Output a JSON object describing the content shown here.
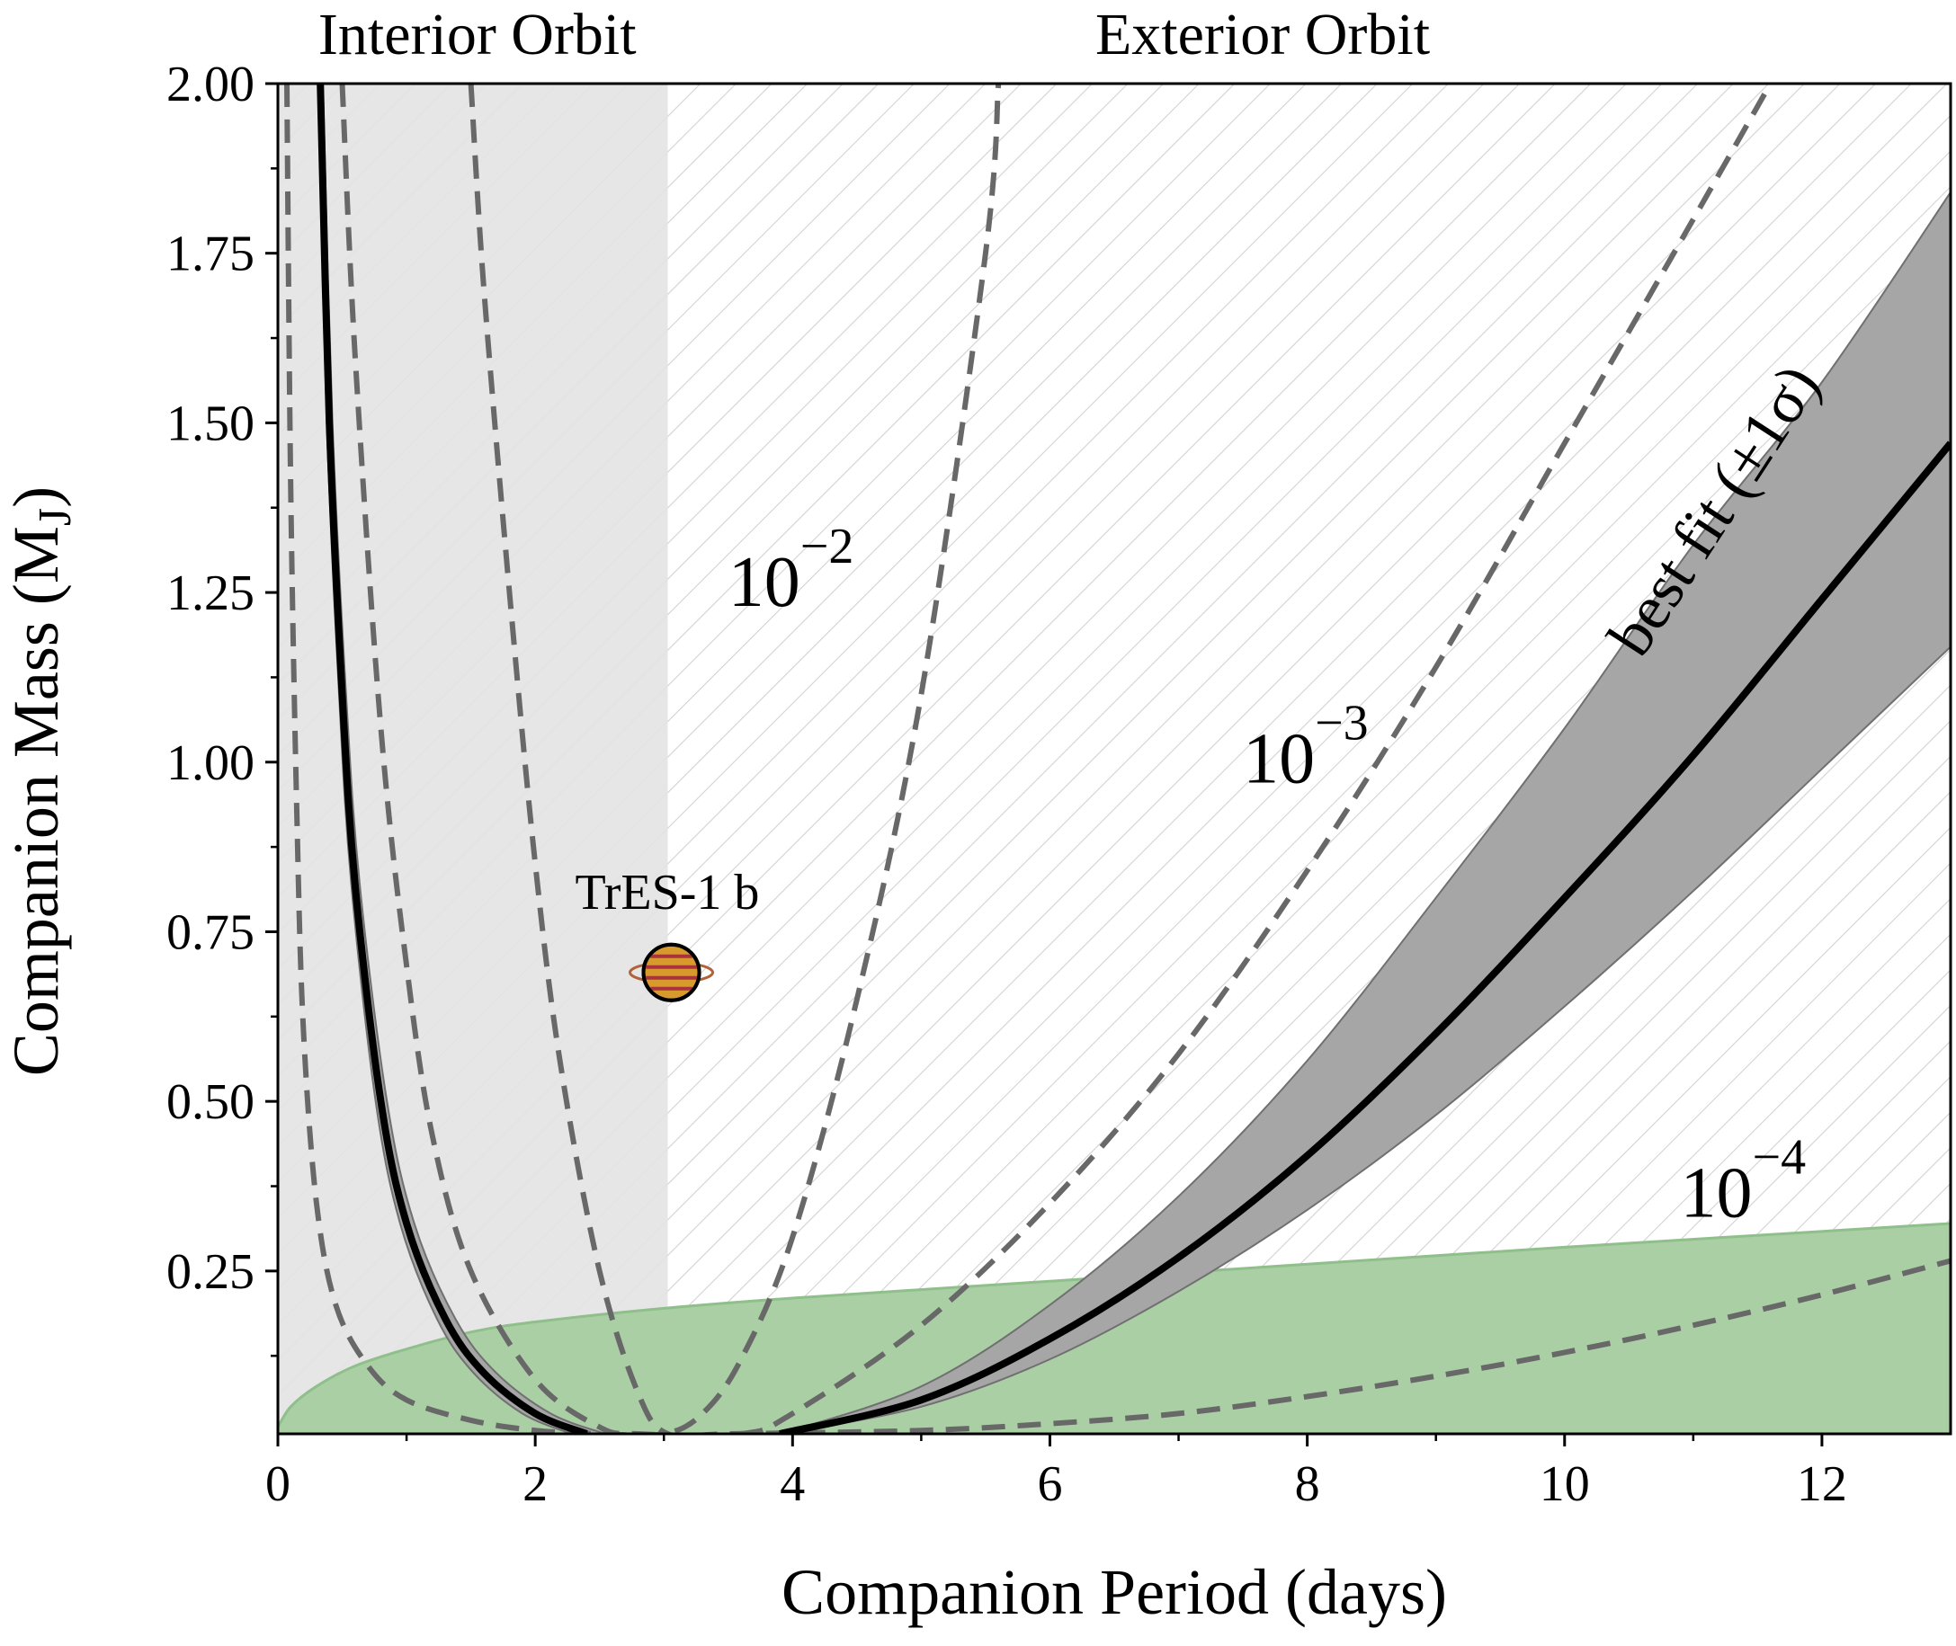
{
  "chart_data": {
    "type": "line",
    "xlabel": "Companion Period (days)",
    "ylabel_main": "Companion Mass (M",
    "ylabel_sub": "J",
    "ylabel_close": ")",
    "xlim": [
      0,
      13
    ],
    "ylim": [
      0.01,
      2.0
    ],
    "xticks": [
      0,
      2,
      4,
      6,
      8,
      10,
      12
    ],
    "xtick_labels": [
      "0",
      "2",
      "4",
      "6",
      "8",
      "10",
      "12"
    ],
    "yticks": [
      0.25,
      0.5,
      0.75,
      1.0,
      1.25,
      1.5,
      1.75,
      2.0
    ],
    "ytick_labels": [
      "0.25",
      "0.50",
      "0.75",
      "1.00",
      "1.25",
      "1.50",
      "1.75",
      "2.00"
    ],
    "regions": {
      "interior_label": "Interior Orbit",
      "exterior_label": "Exterior Orbit",
      "interior_boundary_period": 3.03
    },
    "planet": {
      "name": "TrES-1 b",
      "period": 3.03,
      "mass": 0.69
    },
    "contour_labels": [
      {
        "base": "10",
        "exp": "−2",
        "x": 3.5,
        "y": 1.23
      },
      {
        "base": "10",
        "exp": "−3",
        "x": 7.5,
        "y": 0.97
      },
      {
        "base": "10",
        "exp": "−4",
        "x": 10.9,
        "y": 0.33
      }
    ],
    "best_fit_label": "best fit (±1σ)",
    "best_fit": {
      "interior_branch": [
        [
          0.33,
          2.0
        ],
        [
          0.4,
          1.5
        ],
        [
          0.5,
          1.1
        ],
        [
          0.6,
          0.82
        ],
        [
          0.8,
          0.5
        ],
        [
          1.0,
          0.32
        ],
        [
          1.3,
          0.18
        ],
        [
          1.6,
          0.1
        ],
        [
          2.0,
          0.04
        ],
        [
          2.4,
          0.01
        ]
      ],
      "exterior_branch": [
        [
          3.9,
          0.01
        ],
        [
          5.0,
          0.06
        ],
        [
          6.0,
          0.15
        ],
        [
          7.0,
          0.27
        ],
        [
          8.0,
          0.42
        ],
        [
          9.0,
          0.6
        ],
        [
          10.0,
          0.8
        ],
        [
          11.0,
          1.01
        ],
        [
          12.0,
          1.24
        ],
        [
          13.0,
          1.47
        ]
      ],
      "upper_1sigma": [
        [
          3.9,
          0.01
        ],
        [
          5.0,
          0.08
        ],
        [
          6.0,
          0.2
        ],
        [
          7.0,
          0.36
        ],
        [
          8.0,
          0.56
        ],
        [
          9.0,
          0.8
        ],
        [
          10.0,
          1.05
        ],
        [
          11.0,
          1.32
        ],
        [
          12.0,
          1.56
        ],
        [
          13.0,
          1.84
        ]
      ],
      "lower_1sigma": [
        [
          3.9,
          0.01
        ],
        [
          5.0,
          0.05
        ],
        [
          6.0,
          0.12
        ],
        [
          7.0,
          0.22
        ],
        [
          8.0,
          0.34
        ],
        [
          9.0,
          0.48
        ],
        [
          10.0,
          0.64
        ],
        [
          11.0,
          0.81
        ],
        [
          12.0,
          0.99
        ],
        [
          13.0,
          1.17
        ]
      ]
    },
    "dashed_contours": [
      {
        "name": "10^-2",
        "points": [
          [
            0.07,
            2.0
          ],
          [
            0.1,
            1.4
          ],
          [
            0.15,
            0.9
          ],
          [
            0.2,
            0.6
          ],
          [
            0.3,
            0.35
          ],
          [
            0.45,
            0.2
          ],
          [
            0.7,
            0.11
          ],
          [
            1.0,
            0.06
          ],
          [
            1.5,
            0.03
          ],
          [
            2.0,
            0.015
          ],
          [
            2.5,
            0.01
          ],
          [
            3.0,
            0.01
          ],
          [
            3.3,
            0.04
          ],
          [
            3.6,
            0.12
          ],
          [
            4.0,
            0.3
          ],
          [
            4.5,
            0.65
          ],
          [
            5.0,
            1.1
          ],
          [
            5.5,
            1.75
          ],
          [
            5.6,
            2.0
          ]
        ]
      },
      {
        "name": "10^-3",
        "points": [
          [
            0.5,
            2.0
          ],
          [
            0.6,
            1.6
          ],
          [
            0.8,
            1.05
          ],
          [
            1.0,
            0.7
          ],
          [
            1.2,
            0.45
          ],
          [
            1.5,
            0.25
          ],
          [
            2.0,
            0.09
          ],
          [
            2.5,
            0.02
          ],
          [
            2.8,
            0.01
          ],
          [
            3.6,
            0.01
          ],
          [
            4.0,
            0.04
          ],
          [
            5.0,
            0.17
          ],
          [
            6.0,
            0.35
          ],
          [
            7.0,
            0.57
          ],
          [
            8.0,
            0.84
          ],
          [
            9.0,
            1.14
          ],
          [
            10.0,
            1.47
          ],
          [
            11.0,
            1.8
          ],
          [
            11.6,
            2.0
          ]
        ]
      },
      {
        "name": "10^-4",
        "points": [
          [
            1.5,
            2.0
          ],
          [
            1.6,
            1.7
          ],
          [
            1.8,
            1.25
          ],
          [
            2.0,
            0.85
          ],
          [
            2.2,
            0.55
          ],
          [
            2.5,
            0.25
          ],
          [
            2.8,
            0.07
          ],
          [
            3.03,
            0.01
          ],
          [
            3.5,
            0.01
          ],
          [
            5.0,
            0.015
          ],
          [
            6.0,
            0.025
          ],
          [
            7.0,
            0.04
          ],
          [
            8.0,
            0.065
          ],
          [
            9.0,
            0.095
          ],
          [
            10.0,
            0.13
          ],
          [
            11.0,
            0.17
          ],
          [
            12.0,
            0.215
          ],
          [
            13.0,
            0.265
          ]
        ]
      }
    ],
    "green_region_upper": [
      [
        0.0,
        0.02
      ],
      [
        0.1,
        0.05
      ],
      [
        0.3,
        0.08
      ],
      [
        0.6,
        0.11
      ],
      [
        1.0,
        0.135
      ],
      [
        1.5,
        0.16
      ],
      [
        2.0,
        0.175
      ],
      [
        3.0,
        0.195
      ],
      [
        4.0,
        0.21
      ],
      [
        6.0,
        0.235
      ],
      [
        8.0,
        0.26
      ],
      [
        10.0,
        0.285
      ],
      [
        13.0,
        0.32
      ]
    ],
    "colors": {
      "interior_shade": "#e3e3e3",
      "hatch": "#d2d2d2",
      "green_fill": "#aacfa5",
      "green_edge": "#8fbf8a",
      "band_fill": "#a6a6a6",
      "band_edge": "#707070",
      "best_fit_line": "#000000",
      "dashed_line": "#686868",
      "planet_body": "#d89a2c",
      "planet_stripe": "#a8343a",
      "planet_ring": "#b0623a"
    }
  }
}
